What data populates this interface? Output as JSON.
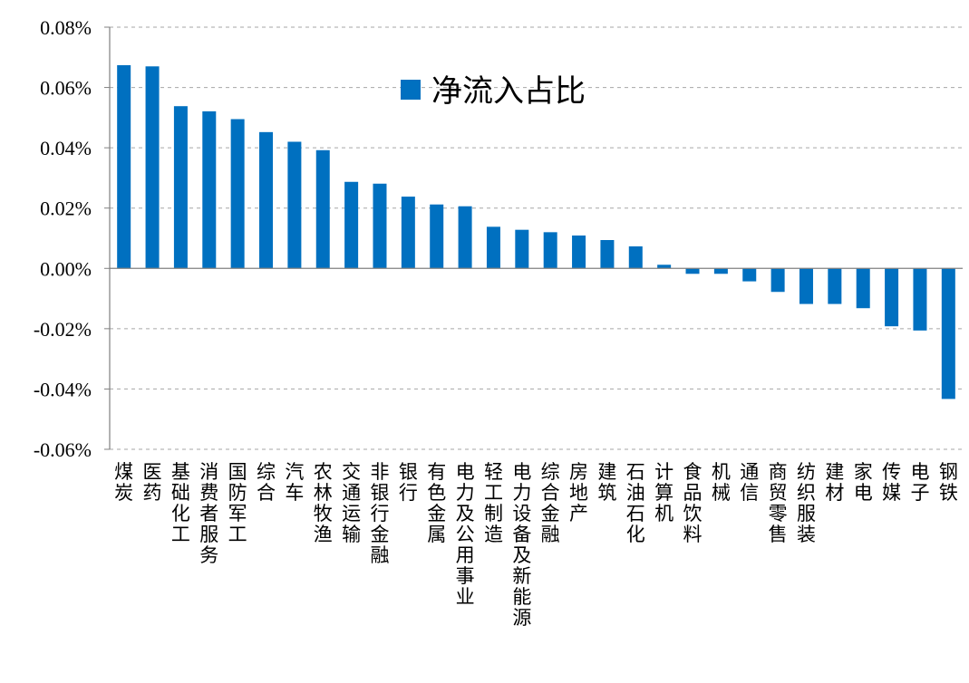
{
  "chart_data": {
    "type": "bar",
    "categories": [
      "煤炭",
      "医药",
      "基础化工",
      "消费者服务",
      "国防军工",
      "综合",
      "汽车",
      "农林牧渔",
      "交通运输",
      "非银行金融",
      "银行",
      "有色金属",
      "电力及公用事业",
      "轻工制造",
      "电力设备及新能源",
      "综合金融",
      "房地产",
      "建筑",
      "石油石化",
      "计算机",
      "食品饮料",
      "机械",
      "通信",
      "商贸零售",
      "纺织服装",
      "建材",
      "家电",
      "传媒",
      "电子",
      "钢铁"
    ],
    "series": [
      {
        "name": "净流入占比",
        "values": [
          0.0674,
          0.067,
          0.0538,
          0.0521,
          0.0495,
          0.0452,
          0.042,
          0.0392,
          0.0287,
          0.0281,
          0.0238,
          0.0212,
          0.0206,
          0.0138,
          0.0128,
          0.012,
          0.0109,
          0.0094,
          0.0073,
          0.0012,
          -0.0018,
          -0.0018,
          -0.0043,
          -0.0078,
          -0.0118,
          -0.0118,
          -0.0132,
          -0.0192,
          -0.0206,
          -0.0433
        ]
      }
    ],
    "unit": "%",
    "ylim": [
      -0.06,
      0.08
    ],
    "yticks": [
      "0.08%",
      "0.06%",
      "0.04%",
      "0.02%",
      "0.00%",
      "-0.02%",
      "-0.04%",
      "-0.06%"
    ],
    "ytick_values": [
      0.08,
      0.06,
      0.04,
      0.02,
      0.0,
      -0.02,
      -0.04,
      -0.06
    ],
    "grid": "horizontal-dashed",
    "legend_position": "top-center",
    "bar_color": "#0070C0",
    "grid_color": "#A6A6A6",
    "axis_color": "#808080"
  }
}
